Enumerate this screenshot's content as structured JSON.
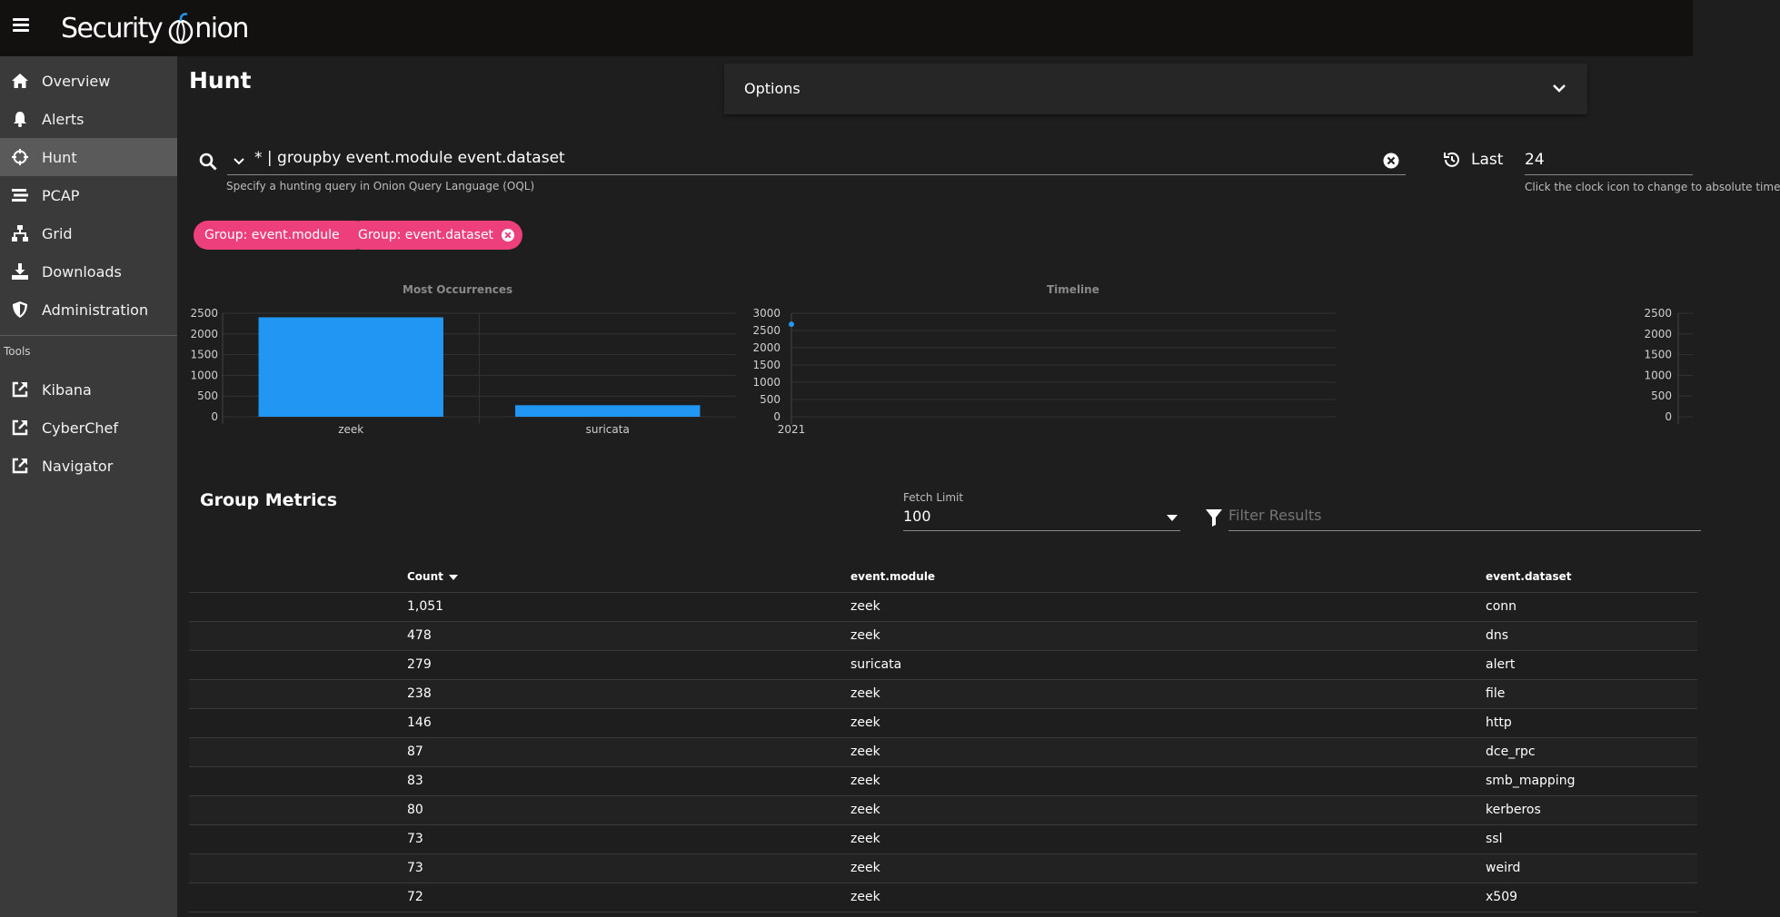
{
  "app": {
    "logo_part1": "Security",
    "logo_part2": "nion"
  },
  "nav": {
    "items": [
      {
        "label": "Overview",
        "icon": "home-icon"
      },
      {
        "label": "Alerts",
        "icon": "bell-icon"
      },
      {
        "label": "Hunt",
        "icon": "crosshairs-icon",
        "active": true
      },
      {
        "label": "PCAP",
        "icon": "stream-icon"
      },
      {
        "label": "Grid",
        "icon": "sitemap-icon"
      },
      {
        "label": "Downloads",
        "icon": "download-icon"
      },
      {
        "label": "Administration",
        "icon": "shield-icon"
      }
    ],
    "tools_title": "Tools",
    "tools": [
      {
        "label": "Kibana",
        "icon": "external-link-icon"
      },
      {
        "label": "CyberChef",
        "icon": "external-link-icon"
      },
      {
        "label": "Navigator",
        "icon": "external-link-icon"
      }
    ]
  },
  "page": {
    "title": "Hunt",
    "options_label": "Options"
  },
  "query": {
    "value": "* | groupby event.module event.dataset",
    "hint": "Specify a hunting query in Onion Query Language (OQL)",
    "time_label": "Last",
    "time_value": "24",
    "time_hint": "Click the clock icon to change to absolute time"
  },
  "chips": [
    "Group: event.module",
    "Group: event.dataset"
  ],
  "chart_data": [
    {
      "type": "bar",
      "title": "Most Occurrences",
      "categories": [
        "zeek",
        "suricata"
      ],
      "values": [
        2402,
        279
      ],
      "ylim": [
        0,
        2500
      ],
      "yticks": [
        "2500",
        "2000",
        "1500",
        "1000",
        "500",
        "0"
      ],
      "grid": true,
      "color": "#2196f3"
    },
    {
      "type": "scatter",
      "title": "Timeline",
      "x_labels": [
        "2021"
      ],
      "points": [
        {
          "x": "2021",
          "y": 2681
        }
      ],
      "ylim": [
        0,
        3000
      ],
      "yticks": [
        "3000",
        "2500",
        "2000",
        "1500",
        "1000",
        "500",
        "0"
      ],
      "grid": true,
      "color": "#2196f3"
    },
    {
      "type": "bar",
      "title": "",
      "categories": [],
      "values": [],
      "ylim": [
        0,
        2500
      ],
      "yticks": [
        "2500",
        "2000",
        "1500",
        "1000",
        "500",
        "0"
      ]
    }
  ],
  "metrics": {
    "title": "Group Metrics",
    "fetch_limit_label": "Fetch Limit",
    "fetch_limit_value": "100",
    "filter_placeholder": "Filter Results",
    "columns": [
      "Count",
      "event.module",
      "event.dataset"
    ],
    "rows": [
      [
        "1,051",
        "zeek",
        "conn"
      ],
      [
        "478",
        "zeek",
        "dns"
      ],
      [
        "279",
        "suricata",
        "alert"
      ],
      [
        "238",
        "zeek",
        "file"
      ],
      [
        "146",
        "zeek",
        "http"
      ],
      [
        "87",
        "zeek",
        "dce_rpc"
      ],
      [
        "83",
        "zeek",
        "smb_mapping"
      ],
      [
        "80",
        "zeek",
        "kerberos"
      ],
      [
        "73",
        "zeek",
        "ssl"
      ],
      [
        "73",
        "zeek",
        "weird"
      ],
      [
        "72",
        "zeek",
        "x509"
      ]
    ]
  }
}
